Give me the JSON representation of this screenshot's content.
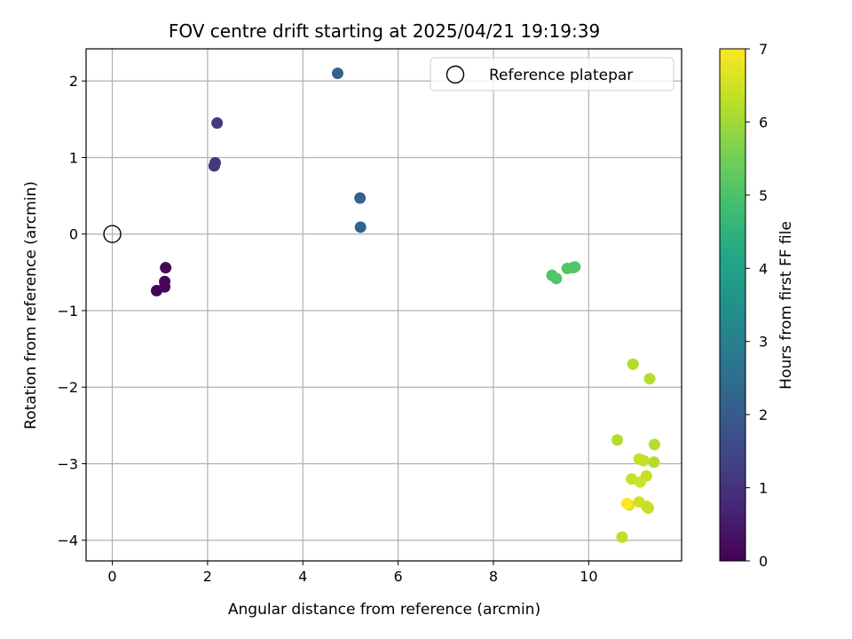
{
  "chart_data": {
    "type": "scatter",
    "title": "FOV centre drift starting at 2025/04/21 19:19:39",
    "xlabel": "Angular distance from reference (arcmin)",
    "ylabel": "Rotation from reference (arcmin)",
    "xlim": [
      -0.55,
      11.95
    ],
    "ylim": [
      -4.27,
      2.42
    ],
    "xticks": [
      0,
      2,
      4,
      6,
      8,
      10
    ],
    "yticks": [
      -4,
      -3,
      -2,
      -1,
      0,
      1,
      2
    ],
    "xtick_labels": [
      "0",
      "2",
      "4",
      "6",
      "8",
      "10"
    ],
    "ytick_labels": [
      "−4",
      "−3",
      "−2",
      "−1",
      "0",
      "1",
      "2"
    ],
    "grid": true,
    "legend": {
      "position": "top-right",
      "entries": [
        "Reference platepar"
      ]
    },
    "reference_point": {
      "x": 0,
      "y": 0,
      "label": "Reference platepar"
    },
    "colorbar": {
      "label": "Hours from first FF file",
      "colormap": "viridis",
      "range": [
        0,
        7
      ],
      "ticks": [
        0,
        1,
        2,
        3,
        4,
        5,
        6,
        7
      ],
      "tick_labels": [
        "0",
        "1",
        "2",
        "3",
        "4",
        "5",
        "6",
        "7"
      ]
    },
    "points": [
      {
        "x": 1.12,
        "y": -0.44,
        "c": 0.1
      },
      {
        "x": 1.1,
        "y": -0.62,
        "c": 0.1
      },
      {
        "x": 1.1,
        "y": -0.69,
        "c": 0.15
      },
      {
        "x": 0.93,
        "y": -0.74,
        "c": 0.05
      },
      {
        "x": 2.2,
        "y": 1.45,
        "c": 1.2
      },
      {
        "x": 2.16,
        "y": 0.93,
        "c": 1.1
      },
      {
        "x": 2.14,
        "y": 0.89,
        "c": 1.15
      },
      {
        "x": 4.73,
        "y": 2.1,
        "c": 2.2
      },
      {
        "x": 5.2,
        "y": 0.47,
        "c": 2.2
      },
      {
        "x": 5.21,
        "y": 0.09,
        "c": 2.2
      },
      {
        "x": 9.23,
        "y": -0.54,
        "c": 5.1
      },
      {
        "x": 9.32,
        "y": -0.58,
        "c": 5.1
      },
      {
        "x": 9.55,
        "y": -0.45,
        "c": 5.1
      },
      {
        "x": 9.67,
        "y": -0.44,
        "c": 5.1
      },
      {
        "x": 9.71,
        "y": -0.43,
        "c": 5.1
      },
      {
        "x": 10.93,
        "y": -1.7,
        "c": 6.2
      },
      {
        "x": 11.28,
        "y": -1.89,
        "c": 6.2
      },
      {
        "x": 10.6,
        "y": -2.69,
        "c": 6.2
      },
      {
        "x": 11.38,
        "y": -2.75,
        "c": 6.2
      },
      {
        "x": 11.06,
        "y": -2.94,
        "c": 6.4
      },
      {
        "x": 11.15,
        "y": -2.96,
        "c": 6.4
      },
      {
        "x": 11.37,
        "y": -2.98,
        "c": 6.2
      },
      {
        "x": 11.21,
        "y": -3.16,
        "c": 6.4
      },
      {
        "x": 10.9,
        "y": -3.2,
        "c": 6.4
      },
      {
        "x": 11.08,
        "y": -3.24,
        "c": 6.5
      },
      {
        "x": 10.85,
        "y": -3.54,
        "c": 6.6
      },
      {
        "x": 11.06,
        "y": -3.5,
        "c": 6.5
      },
      {
        "x": 11.22,
        "y": -3.56,
        "c": 6.4
      },
      {
        "x": 11.25,
        "y": -3.58,
        "c": 6.4
      },
      {
        "x": 10.8,
        "y": -3.52,
        "c": 7.0
      },
      {
        "x": 10.7,
        "y": -3.96,
        "c": 6.3
      }
    ]
  }
}
